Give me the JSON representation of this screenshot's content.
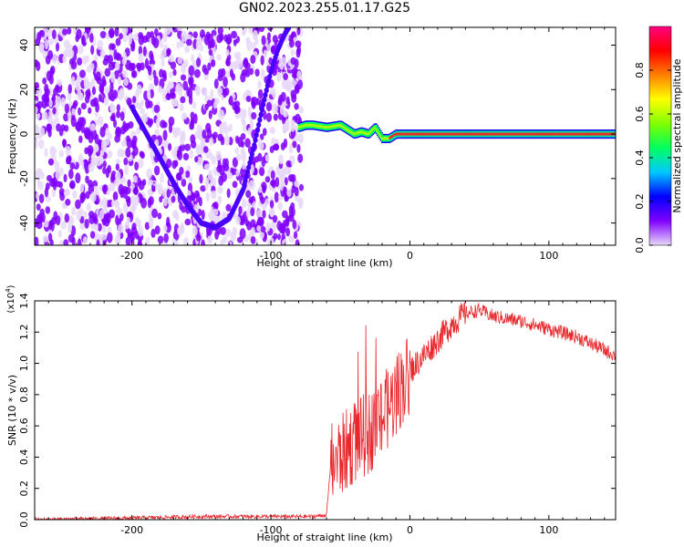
{
  "figure_title": "GN02.2023.255.01.17.G25",
  "chart_data": [
    {
      "type": "heatmap",
      "title": "",
      "xlabel": "Height of straight line (km)",
      "ylabel": "Frequency (Hz)",
      "xlim": [
        -270,
        148
      ],
      "ylim": [
        -50,
        48
      ],
      "xticks": [
        -200,
        -100,
        0,
        100
      ],
      "yticks": [
        -40,
        -20,
        0,
        20,
        40
      ],
      "colorbar": {
        "label": "Normalized spectral amplitude",
        "range": [
          0,
          1
        ],
        "ticks": [
          0.0,
          0.2,
          0.4,
          0.6,
          0.8
        ],
        "colors": [
          "#e8d8f8",
          "#8000ff",
          "#0000ff",
          "#00c8ff",
          "#00ff60",
          "#80ff00",
          "#ffff00",
          "#ff8000",
          "#ff0000",
          "#ff0080"
        ]
      },
      "ridges": [
        {
          "x": [
            -200,
            -185,
            -170,
            -160,
            -150,
            -140,
            -130,
            -120
          ],
          "y": [
            12,
            -5,
            -22,
            -32,
            -40,
            -42,
            -38,
            -25
          ],
          "amplitude": 0.3
        },
        {
          "x": [
            -120,
            -112,
            -105,
            -100,
            -95,
            -90,
            -87
          ],
          "y": [
            -25,
            -5,
            15,
            28,
            38,
            45,
            48
          ],
          "amplitude": 0.35
        },
        {
          "x": [
            -80,
            -75,
            -70,
            -60,
            -50,
            -45,
            -40,
            -35,
            -30,
            -25,
            -20,
            -15,
            -10,
            0,
            50,
            148
          ],
          "y": [
            3,
            4,
            4,
            3,
            4,
            2,
            0,
            1,
            0,
            3,
            -2,
            -2,
            0,
            0,
            0,
            0
          ],
          "amplitude": 0.9
        }
      ]
    },
    {
      "type": "line",
      "title": "",
      "xlabel": "Height of straight line (km)",
      "ylabel": "SNR (10 * v/v)",
      "scale_label": "(x10",
      "scale_exp": "4",
      "xlim": [
        -270,
        148
      ],
      "ylim": [
        0,
        1.4
      ],
      "xticks": [
        -200,
        -100,
        0,
        100
      ],
      "yticks": [
        0.0,
        0.2,
        0.4,
        0.6,
        0.8,
        1.0,
        1.2,
        1.4
      ],
      "series": [
        {
          "color": "#e8262b",
          "x": [
            -270,
            -200,
            -150,
            -100,
            -70,
            -60,
            -57,
            -50,
            -40,
            -30,
            -20,
            -10,
            0,
            10,
            20,
            30,
            40,
            50,
            60,
            80,
            100,
            120,
            148
          ],
          "y": [
            0.0,
            0.01,
            0.02,
            0.02,
            0.02,
            0.03,
            0.35,
            0.4,
            0.5,
            0.55,
            0.65,
            0.8,
            0.95,
            1.05,
            1.15,
            1.25,
            1.32,
            1.34,
            1.3,
            1.27,
            1.22,
            1.17,
            1.05
          ]
        }
      ]
    }
  ]
}
